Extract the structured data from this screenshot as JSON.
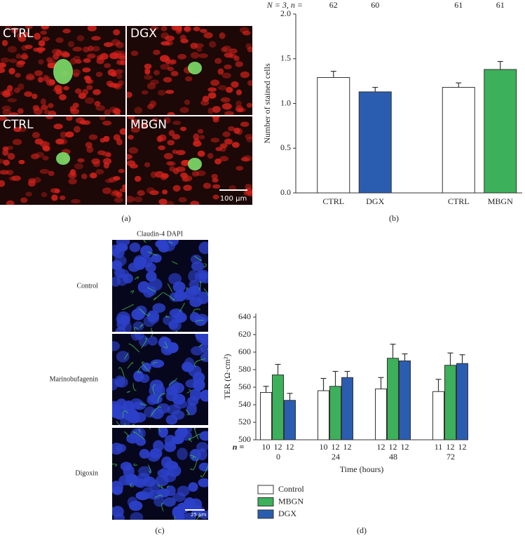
{
  "panel_a": {
    "labels": [
      "CTRL",
      "DGX",
      "CTRL",
      "MBGN"
    ],
    "scale_bar": "100 μm",
    "caption": "(a)"
  },
  "panel_c": {
    "title": "Claudin-4 DAPI",
    "rows": [
      "Control",
      "Marinobufagenin",
      "Digoxin"
    ],
    "scale_bar": "25 μm",
    "caption": "(c)"
  },
  "chart_data": [
    {
      "type": "bar",
      "caption": "(b)",
      "ylabel": "Number of stained cells",
      "categories": [
        "CTRL",
        "DGX",
        null,
        "CTRL",
        "MBGN"
      ],
      "values": [
        1.29,
        1.13,
        null,
        1.18,
        1.38
      ],
      "errors": [
        0.07,
        0.05,
        null,
        0.05,
        0.09
      ],
      "colors": [
        "#ffffff",
        "#2a5db0",
        null,
        "#ffffff",
        "#3cb05a"
      ],
      "n_label": "N = 3, n =",
      "n_values": [
        62,
        60,
        null,
        61,
        61
      ],
      "ylim": [
        0,
        2.0
      ],
      "yticks": [
        {
          "value": 0,
          "label": "0.0"
        },
        0.5,
        {
          "value": 1,
          "label": "1.0"
        },
        1.5,
        {
          "value": 2,
          "label": "2.0"
        }
      ]
    },
    {
      "type": "bar",
      "caption": "(d)",
      "ylabel": "TER (Ω·cm²)",
      "xlabel": "Time (hours)",
      "categories": [
        "0",
        "24",
        "48",
        "72"
      ],
      "n_label": "n =",
      "series": [
        {
          "name": "Control",
          "color": "#ffffff",
          "values": [
            554,
            556,
            558,
            555
          ],
          "errors": [
            7,
            14,
            13,
            14
          ],
          "n": [
            10,
            10,
            12,
            11
          ]
        },
        {
          "name": "MBGN",
          "color": "#3cb05a",
          "values": [
            574,
            561,
            593,
            585
          ],
          "errors": [
            12,
            17,
            16,
            14
          ],
          "n": [
            12,
            12,
            12,
            12
          ]
        },
        {
          "name": "DGX",
          "color": "#2a5db0",
          "values": [
            545,
            571,
            590,
            587
          ],
          "errors": [
            8,
            7,
            8,
            10
          ],
          "n": [
            12,
            12,
            12,
            12
          ]
        }
      ],
      "ylim": [
        500,
        644
      ],
      "yticks": [
        500,
        520,
        540,
        560,
        580,
        600,
        620,
        640
      ]
    }
  ]
}
